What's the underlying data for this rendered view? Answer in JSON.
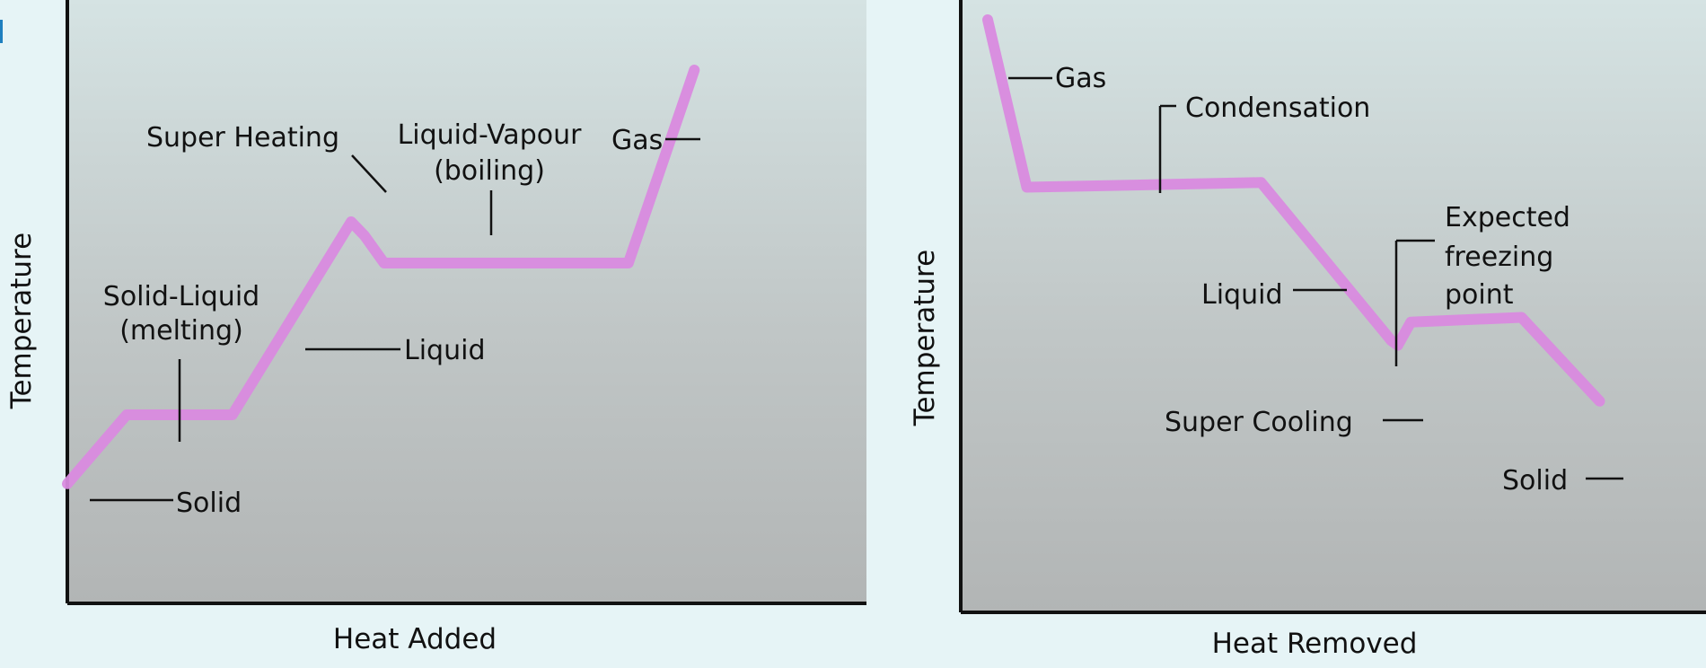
{
  "chart_data": [
    {
      "type": "line",
      "title": "",
      "xlabel": "Heat Added",
      "ylabel": "Temperature",
      "grid": false,
      "legend": "none",
      "line_color": "#d98adf",
      "series": [
        {
          "name": "",
          "points": [
            [
              0.0,
              0.1
            ],
            [
              0.09,
              0.25
            ],
            [
              0.25,
              0.25
            ],
            [
              0.43,
              0.67
            ],
            [
              0.45,
              0.64
            ],
            [
              0.48,
              0.58
            ],
            [
              0.85,
              0.58
            ],
            [
              0.95,
              1.0
            ]
          ]
        }
      ],
      "annotations": [
        {
          "id": "solid",
          "text": [
            "Solid"
          ]
        },
        {
          "id": "solid-liquid",
          "text": [
            "Solid-Liquid",
            "(melting)"
          ]
        },
        {
          "id": "liquid",
          "text": [
            "Liquid"
          ]
        },
        {
          "id": "super-heating",
          "text": [
            "Super Heating"
          ]
        },
        {
          "id": "liquid-vapour",
          "text": [
            "Liquid-Vapour",
            "(boiling)"
          ]
        },
        {
          "id": "gas",
          "text": [
            "Gas"
          ]
        }
      ]
    },
    {
      "type": "line",
      "title": "",
      "xlabel": "Heat Removed",
      "ylabel": "Temperature",
      "grid": false,
      "legend": "none",
      "line_color": "#d98adf",
      "series": [
        {
          "name": "",
          "points": [
            [
              0.0,
              1.0
            ],
            [
              0.06,
              0.64
            ],
            [
              0.42,
              0.65
            ],
            [
              0.62,
              0.31
            ],
            [
              0.63,
              0.3
            ],
            [
              0.65,
              0.35
            ],
            [
              0.82,
              0.36
            ],
            [
              0.94,
              0.18
            ]
          ]
        }
      ],
      "annotations": [
        {
          "id": "gas",
          "text": [
            "Gas"
          ]
        },
        {
          "id": "condensation",
          "text": [
            "Condensation"
          ]
        },
        {
          "id": "expected-freezing",
          "text": [
            "Expected",
            "freezing",
            "point"
          ]
        },
        {
          "id": "liquid",
          "text": [
            "Liquid"
          ]
        },
        {
          "id": "super-cooling",
          "text": [
            "Super Cooling"
          ]
        },
        {
          "id": "solid",
          "text": [
            "Solid"
          ]
        }
      ]
    }
  ]
}
